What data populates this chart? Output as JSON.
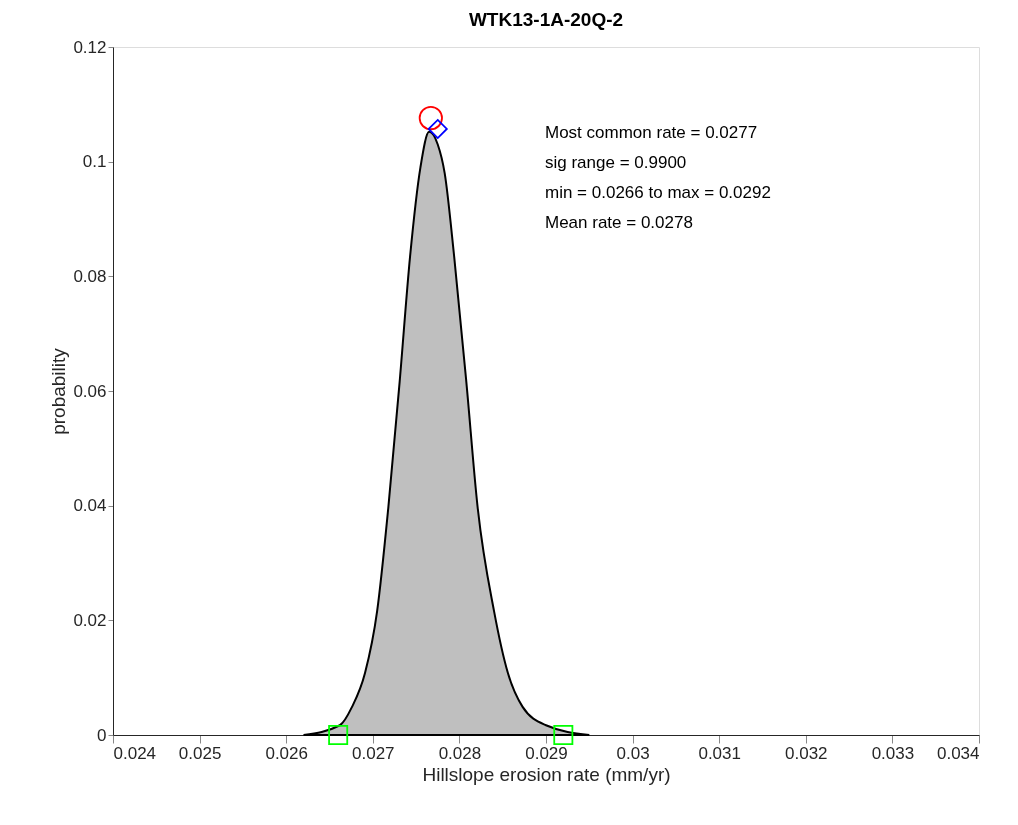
{
  "chart_data": {
    "type": "area",
    "title": "WTK13-1A-20Q-2",
    "xlabel": "Hillslope erosion rate (mm/yr)",
    "ylabel": "probability",
    "xlim": [
      0.024,
      0.034
    ],
    "xticks": [
      0.024,
      0.025,
      0.026,
      0.027,
      0.028,
      0.029,
      0.03,
      0.031,
      0.032,
      0.033,
      0.034
    ],
    "ylim": [
      0,
      0.12
    ],
    "yticks": [
      0,
      0.02,
      0.04,
      0.06,
      0.08,
      0.1,
      0.12
    ],
    "grid": false,
    "annotations": [
      "Most common rate = 0.0277",
      "sig range = 0.9900",
      "min = 0.0266 to max = 0.0292",
      "Mean rate = 0.0278"
    ],
    "series": [
      {
        "color": "#bfbfbf",
        "x": [
          0.0262,
          0.02662,
          0.02676,
          0.02691,
          0.02705,
          0.02718,
          0.02731,
          0.02743,
          0.02755,
          0.02765,
          0.02775,
          0.02783,
          0.02794,
          0.02808,
          0.02821,
          0.0284,
          0.02856,
          0.02873,
          0.029,
          0.0295
        ],
        "values": [
          0,
          0.0017,
          0.0049,
          0.0108,
          0.0216,
          0.0398,
          0.0616,
          0.0834,
          0.099,
          0.1052,
          0.103,
          0.098,
          0.0834,
          0.0616,
          0.0398,
          0.0216,
          0.0108,
          0.0049,
          0.0017,
          0
        ]
      },
      {
        "type": "scatter",
        "marker": "circle",
        "color": "#ff0000",
        "x": [
          0.02767
        ],
        "values": [
          0.1076
        ]
      },
      {
        "type": "scatter",
        "marker": "diamond",
        "color": "#0000ff",
        "x": [
          0.02775
        ],
        "values": [
          0.1057
        ]
      },
      {
        "type": "scatter",
        "marker": "square",
        "color": "#00ff00",
        "x": [
          0.0266,
          0.0292
        ],
        "values": [
          0,
          0
        ]
      }
    ]
  }
}
